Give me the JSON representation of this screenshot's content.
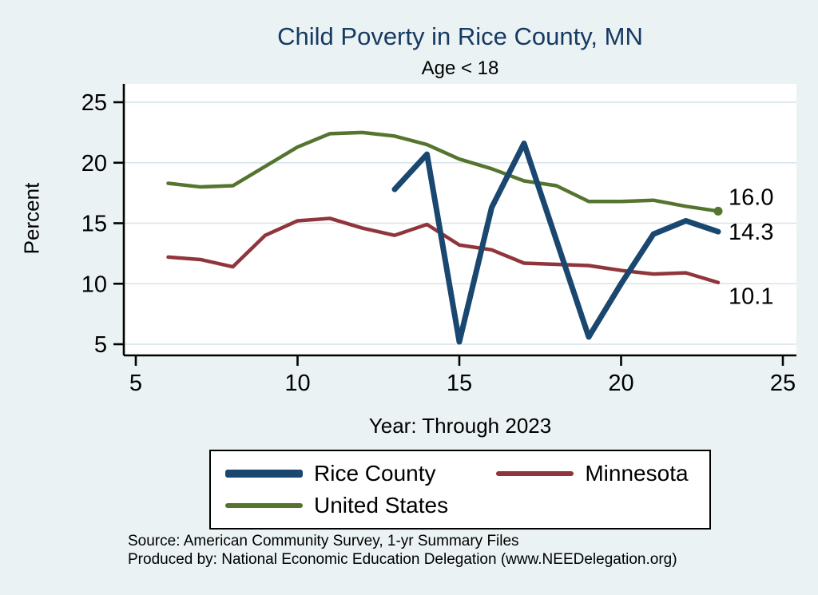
{
  "title": "Child Poverty in Rice County, MN",
  "subtitle": "Age < 18",
  "notes": [
    "Source: American Community Survey, 1-yr Summary Files",
    "Produced by: National Economic Education Delegation (www.NEEDelegation.org)"
  ],
  "colors": {
    "background": "#eaf2f3",
    "plot_background": "#ffffff",
    "grid": "#d6e4e9",
    "axis": "#000000",
    "title": "#173a63"
  },
  "chart_data": {
    "type": "line",
    "title": "Child Poverty in Rice County, MN",
    "subtitle": "Age < 18",
    "xlabel": "Year: Through 2023",
    "ylabel": "Percent",
    "xlim": [
      5,
      25
    ],
    "ylim": [
      5,
      25
    ],
    "xticks": [
      5,
      10,
      15,
      20,
      25
    ],
    "yticks": [
      5,
      10,
      15,
      20,
      25
    ],
    "grid": true,
    "legend_position": "bottom",
    "series": [
      {
        "name": "Rice County",
        "color": "#1a476f",
        "width": 7,
        "end_label": "14.3",
        "end_label_dy": 10,
        "end_marker": false,
        "x": [
          13,
          14,
          15,
          16,
          17,
          18,
          19,
          20,
          21,
          22,
          23
        ],
        "y": [
          17.8,
          20.7,
          5.2,
          16.3,
          21.6,
          13.6,
          5.6,
          10.0,
          14.1,
          15.2,
          14.3
        ]
      },
      {
        "name": "Minnesota",
        "color": "#90353b",
        "width": 4.5,
        "end_label": "10.1",
        "end_label_dy": 27,
        "end_marker": false,
        "x": [
          6,
          7,
          8,
          9,
          10,
          11,
          12,
          13,
          14,
          15,
          16,
          17,
          18,
          19,
          20,
          21,
          22,
          23
        ],
        "y": [
          12.2,
          12.0,
          11.4,
          14.0,
          15.2,
          15.4,
          14.6,
          14.0,
          14.9,
          13.2,
          12.8,
          11.7,
          11.6,
          11.5,
          11.1,
          10.8,
          10.9,
          10.1
        ]
      },
      {
        "name": "United States",
        "color": "#55752f",
        "width": 4.5,
        "end_label": "16.0",
        "end_label_dy": -8,
        "end_marker": true,
        "x": [
          6,
          7,
          8,
          9,
          10,
          11,
          12,
          13,
          14,
          15,
          16,
          17,
          18,
          19,
          20,
          21,
          22,
          23
        ],
        "y": [
          18.3,
          18.0,
          18.1,
          19.7,
          21.3,
          22.4,
          22.5,
          22.2,
          21.5,
          20.3,
          19.5,
          18.5,
          18.1,
          16.8,
          16.8,
          16.9,
          16.4,
          16.0
        ]
      }
    ]
  }
}
